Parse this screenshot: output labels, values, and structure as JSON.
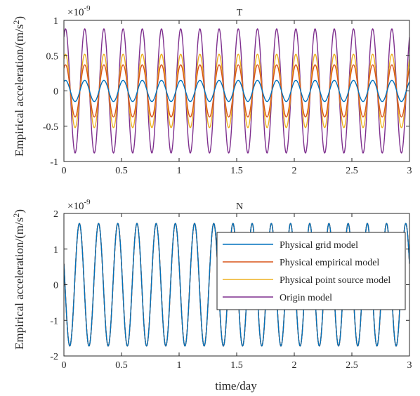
{
  "figure": {
    "xlabel": "time/day"
  },
  "chart_data": [
    {
      "type": "line",
      "title": "T",
      "xlabel": "",
      "ylabel": "Empirical acceleration/(m/s^2)",
      "y_exponent": "×10^-9",
      "xlim": [
        0,
        3
      ],
      "ylim": [
        -1,
        1
      ],
      "xticks": [
        "0",
        "0.5",
        "1",
        "1.5",
        "2",
        "2.5",
        "3"
      ],
      "yticks": [
        "-1",
        "-0.5",
        "0",
        "0.5",
        "1"
      ],
      "cycles": 18,
      "phase_deg": 60,
      "series": [
        {
          "name": "Physical grid model",
          "color": "#0072BD",
          "amplitude": 0.15
        },
        {
          "name": "Physical empirical model",
          "color": "#D95319",
          "amplitude": 0.37
        },
        {
          "name": "Physical point source model",
          "color": "#EDB120",
          "amplitude": 0.52
        },
        {
          "name": "Origin model",
          "color": "#7E2F8E",
          "amplitude": 0.88
        }
      ]
    },
    {
      "type": "line",
      "title": "N",
      "xlabel": "time/day",
      "ylabel": "Empirical acceleration/(m/s^2)",
      "y_exponent": "×10^-9",
      "xlim": [
        0,
        3
      ],
      "ylim": [
        -2,
        2
      ],
      "xticks": [
        "0",
        "0.5",
        "1",
        "1.5",
        "2",
        "2.5",
        "3"
      ],
      "yticks": [
        "-2",
        "-1",
        "0",
        "1",
        "2"
      ],
      "cycles": 18,
      "phase_deg": 160,
      "legend": {
        "position": "center-right"
      },
      "series": [
        {
          "name": "Physical grid model",
          "color": "#0072BD",
          "amplitude": 1.72
        },
        {
          "name": "Physical empirical model",
          "color": "#D95319",
          "amplitude": 1.72
        },
        {
          "name": "Physical point source model",
          "color": "#EDB120",
          "amplitude": 1.72
        },
        {
          "name": "Origin model",
          "color": "#7E2F8E",
          "amplitude": 1.72
        }
      ]
    }
  ]
}
